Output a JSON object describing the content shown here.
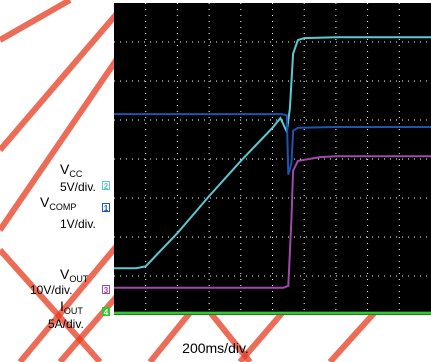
{
  "chart_data": {
    "type": "line",
    "timebase": "200ms/div.",
    "divisions": {
      "x": 10,
      "y": 8
    },
    "xlim": [
      0,
      10
    ],
    "ylim": [
      0,
      8
    ],
    "watermark_color": "#e63b1f",
    "background": "#000000",
    "grid_color": "#ffffff",
    "channels": [
      {
        "id": "2",
        "name_main": "V",
        "name_sub": "CC",
        "scale": "5V/div.",
        "color": "#5ccad2",
        "points": [
          [
            0,
            1.2
          ],
          [
            0.7,
            1.2
          ],
          [
            1,
            1.25
          ],
          [
            2,
            2.1
          ],
          [
            3,
            3.05
          ],
          [
            4,
            3.95
          ],
          [
            5,
            4.8
          ],
          [
            5.25,
            5.05
          ],
          [
            5.45,
            4.7
          ],
          [
            5.55,
            5.3
          ],
          [
            5.65,
            6.7
          ],
          [
            5.8,
            7.05
          ],
          [
            6,
            7.1
          ],
          [
            7,
            7.12
          ],
          [
            10,
            7.12
          ]
        ]
      },
      {
        "id": "1",
        "name_main": "V",
        "name_sub": "COMP",
        "scale": "1V/div.",
        "color": "#1c55b0",
        "points": [
          [
            0,
            5.15
          ],
          [
            5.3,
            5.15
          ],
          [
            5.45,
            5.12
          ],
          [
            5.5,
            3.6
          ],
          [
            5.6,
            3.9
          ],
          [
            5.65,
            4.72
          ],
          [
            5.8,
            4.8
          ],
          [
            7,
            4.82
          ],
          [
            10,
            4.82
          ]
        ]
      },
      {
        "id": "3",
        "name_main": "V",
        "name_sub": "OUT",
        "scale": "10V/div.",
        "color": "#a348ab",
        "points": [
          [
            0,
            0.7
          ],
          [
            5.35,
            0.7
          ],
          [
            5.5,
            0.75
          ],
          [
            5.6,
            2.5
          ],
          [
            5.65,
            3.7
          ],
          [
            5.8,
            3.95
          ],
          [
            6.5,
            4.05
          ],
          [
            7,
            4.07
          ],
          [
            10,
            4.07
          ]
        ]
      },
      {
        "id": "4",
        "name_main": "I",
        "name_sub": "OUT",
        "scale": "5A/div.",
        "color": "#32c832",
        "points": [
          [
            0,
            0.05
          ],
          [
            10,
            0.05
          ]
        ]
      }
    ]
  }
}
